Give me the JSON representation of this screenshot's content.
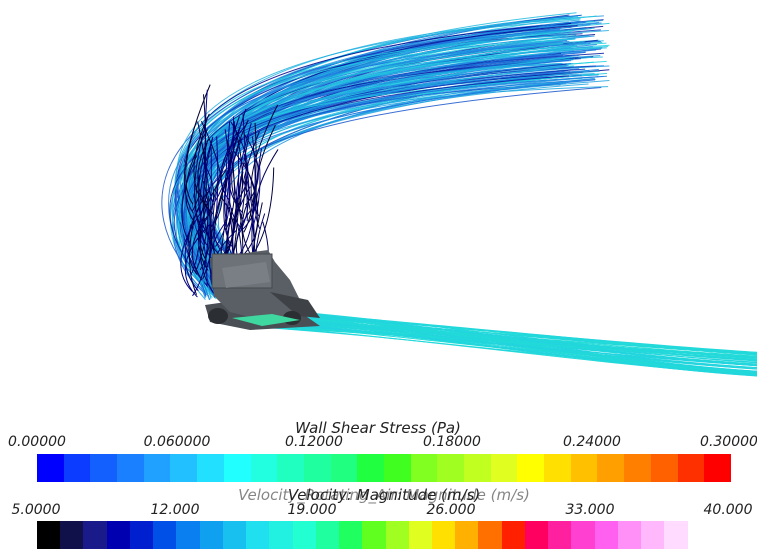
{
  "scene": {
    "background": "#ffffff",
    "streamline_colors": {
      "slow": "#00008b",
      "mid": "#1e6fe0",
      "fast": "#22d3e0",
      "floor_trail": "#22dcd6"
    },
    "car_body_color": "#555a60"
  },
  "legend_top": {
    "title": "Wall Shear Stress (Pa)",
    "tick_labels": [
      "0.00000",
      "0.060000",
      "0.12000",
      "0.18000",
      "0.24000",
      "0.30000"
    ],
    "range": [
      0.0,
      0.3
    ],
    "colors": [
      "#0000ff",
      "#0b3cff",
      "#1460ff",
      "#1a80ff",
      "#20a0ff",
      "#22c0ff",
      "#22e0ff",
      "#22ffff",
      "#22ffe0",
      "#20ffc0",
      "#20ffa0",
      "#20ff80",
      "#20ff40",
      "#40ff20",
      "#80ff20",
      "#a0ff20",
      "#c0ff20",
      "#e0ff20",
      "#ffff00",
      "#ffe000",
      "#ffc000",
      "#ffa000",
      "#ff8000",
      "#ff6000",
      "#ff3000",
      "#ff0000"
    ]
  },
  "legend_bottom": {
    "title": "Velocity: Magnitude (m/s)",
    "overlapping_title": "Velocity_Rotating_Air: Magnitude (m/s)",
    "tick_labels": [
      "5.0000",
      "12.000",
      "19.000",
      "26.000",
      "33.000",
      "40.000"
    ],
    "range": [
      5.0,
      40.0
    ],
    "colors": [
      "#000000",
      "#10104a",
      "#1a1a8a",
      "#0000b0",
      "#0020d0",
      "#0050e8",
      "#0a80f0",
      "#10a0f0",
      "#18c0f0",
      "#20e0f0",
      "#22f0e0",
      "#22ffd0",
      "#20ffa0",
      "#20ff60",
      "#60ff20",
      "#a0ff20",
      "#e0ff20",
      "#ffe000",
      "#ffb000",
      "#ff7000",
      "#ff2000",
      "#ff0060",
      "#ff20a0",
      "#ff40d0",
      "#ff60f0",
      "#ff90f8",
      "#ffb8fc",
      "#ffdcff",
      "#ffffff"
    ]
  }
}
